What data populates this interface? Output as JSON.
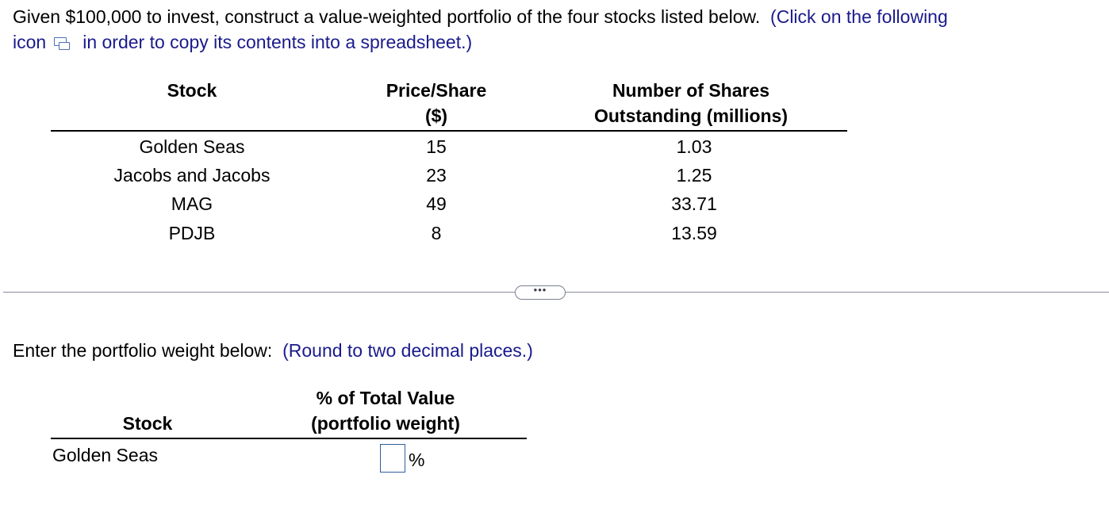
{
  "intro": {
    "text_before": "Given $100,000 to invest, construct a value-weighted portfolio of the four stocks listed below.",
    "hint_part1": "(Click on the following",
    "hint_icon_word": "icon",
    "hint_part2": "in order to copy its contents into a spreadsheet.)",
    "icon": "copy-to-spreadsheet-icon"
  },
  "table1": {
    "headers": {
      "stock": "Stock",
      "price_line1": "Price/Share",
      "price_line2": "($)",
      "shares_line1": "Number of Shares",
      "shares_line2": "Outstanding (millions)"
    },
    "rows": [
      {
        "stock": "Golden Seas",
        "price": "15",
        "shares": "1.03"
      },
      {
        "stock": "Jacobs and Jacobs",
        "price": "23",
        "shares": "1.25"
      },
      {
        "stock": "MAG",
        "price": "49",
        "shares": "33.71"
      },
      {
        "stock": "PDJB",
        "price": "8",
        "shares": "13.59"
      }
    ]
  },
  "more_button": "•••",
  "prompt": {
    "text": "Enter the portfolio weight below:",
    "hint": "(Round to two decimal places.)"
  },
  "table2": {
    "headers": {
      "stock": "Stock",
      "weight_line1": "% of Total Value",
      "weight_line2": "(portfolio weight)"
    },
    "row": {
      "stock": "Golden Seas",
      "value": "",
      "unit": "%"
    }
  },
  "colors": {
    "hint_blue": "#1a1a8c",
    "input_border": "#2f5d9e",
    "divider": "#8a8f99"
  }
}
